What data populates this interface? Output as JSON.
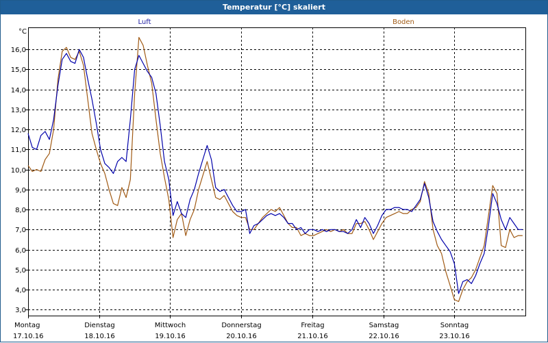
{
  "window": {
    "title": "Temperatur [°C] skaliert"
  },
  "chart_data": {
    "type": "line",
    "title": "Temperatur [°C] skaliert",
    "unit_label": "°C",
    "xlabel": "",
    "ylabel": "°C",
    "xlim": [
      0,
      7
    ],
    "ylim": [
      2.7,
      17.1
    ],
    "grid": true,
    "y_ticks": [
      3.0,
      4.0,
      5.0,
      6.0,
      7.0,
      8.0,
      9.0,
      10.0,
      11.0,
      12.0,
      13.0,
      14.0,
      15.0,
      16.0
    ],
    "y_tick_labels": [
      "3,0",
      "4,0",
      "5,0",
      "6,0",
      "7,0",
      "8,0",
      "9,0",
      "10,0",
      "11,0",
      "12,0",
      "13,0",
      "14,0",
      "15,0",
      "16,0"
    ],
    "x_ticks": [
      0,
      1,
      2,
      3,
      4,
      5,
      6
    ],
    "x_tick_days": [
      "Montag",
      "Dienstag",
      "Mittwoch",
      "Donnerstag",
      "Freitag",
      "Samstag",
      "Sonntag"
    ],
    "x_tick_dates": [
      "17.10.16",
      "18.10.16",
      "19.10.16",
      "20.10.16",
      "21.10.16",
      "22.10.16",
      "23.10.16"
    ],
    "series": [
      {
        "name": "Luft",
        "color": "#0000aa",
        "points": [
          [
            0.0,
            11.8
          ],
          [
            0.06,
            11.1
          ],
          [
            0.12,
            11.0
          ],
          [
            0.18,
            11.7
          ],
          [
            0.24,
            11.9
          ],
          [
            0.3,
            11.5
          ],
          [
            0.36,
            12.5
          ],
          [
            0.42,
            14.2
          ],
          [
            0.48,
            15.5
          ],
          [
            0.54,
            15.8
          ],
          [
            0.6,
            15.4
          ],
          [
            0.66,
            15.3
          ],
          [
            0.72,
            16.0
          ],
          [
            0.78,
            15.6
          ],
          [
            0.84,
            14.5
          ],
          [
            0.9,
            13.5
          ],
          [
            0.96,
            12.3
          ],
          [
            1.02,
            11.0
          ],
          [
            1.08,
            10.3
          ],
          [
            1.14,
            10.1
          ],
          [
            1.2,
            9.8
          ],
          [
            1.26,
            10.4
          ],
          [
            1.32,
            10.6
          ],
          [
            1.38,
            10.4
          ],
          [
            1.44,
            12.5
          ],
          [
            1.5,
            15.0
          ],
          [
            1.56,
            15.7
          ],
          [
            1.62,
            15.3
          ],
          [
            1.68,
            14.9
          ],
          [
            1.74,
            14.6
          ],
          [
            1.8,
            13.8
          ],
          [
            1.86,
            12.2
          ],
          [
            1.92,
            10.4
          ],
          [
            1.98,
            9.5
          ],
          [
            2.04,
            7.7
          ],
          [
            2.1,
            8.4
          ],
          [
            2.16,
            7.8
          ],
          [
            2.22,
            7.6
          ],
          [
            2.28,
            8.5
          ],
          [
            2.34,
            9.0
          ],
          [
            2.4,
            9.8
          ],
          [
            2.46,
            10.5
          ],
          [
            2.52,
            11.2
          ],
          [
            2.58,
            10.5
          ],
          [
            2.64,
            9.1
          ],
          [
            2.7,
            8.9
          ],
          [
            2.76,
            9.0
          ],
          [
            2.82,
            8.6
          ],
          [
            2.88,
            8.2
          ],
          [
            2.94,
            7.9
          ],
          [
            3.0,
            7.9
          ],
          [
            3.06,
            8.0
          ],
          [
            3.12,
            6.8
          ],
          [
            3.18,
            7.2
          ],
          [
            3.24,
            7.3
          ],
          [
            3.3,
            7.5
          ],
          [
            3.36,
            7.7
          ],
          [
            3.42,
            7.8
          ],
          [
            3.48,
            7.7
          ],
          [
            3.54,
            7.8
          ],
          [
            3.6,
            7.6
          ],
          [
            3.66,
            7.3
          ],
          [
            3.72,
            7.3
          ],
          [
            3.78,
            7.0
          ],
          [
            3.84,
            7.1
          ],
          [
            3.9,
            6.8
          ],
          [
            3.96,
            7.0
          ],
          [
            4.02,
            7.0
          ],
          [
            4.08,
            6.9
          ],
          [
            4.14,
            7.0
          ],
          [
            4.2,
            6.9
          ],
          [
            4.26,
            7.0
          ],
          [
            4.32,
            7.0
          ],
          [
            4.38,
            6.9
          ],
          [
            4.44,
            6.9
          ],
          [
            4.5,
            6.8
          ],
          [
            4.56,
            7.0
          ],
          [
            4.62,
            7.5
          ],
          [
            4.68,
            7.1
          ],
          [
            4.74,
            7.6
          ],
          [
            4.8,
            7.3
          ],
          [
            4.86,
            6.8
          ],
          [
            4.92,
            7.2
          ],
          [
            4.98,
            7.7
          ],
          [
            5.04,
            8.0
          ],
          [
            5.1,
            8.0
          ],
          [
            5.16,
            8.1
          ],
          [
            5.22,
            8.1
          ],
          [
            5.28,
            8.0
          ],
          [
            5.34,
            8.0
          ],
          [
            5.4,
            7.9
          ],
          [
            5.46,
            8.2
          ],
          [
            5.52,
            8.5
          ],
          [
            5.58,
            9.3
          ],
          [
            5.64,
            8.6
          ],
          [
            5.7,
            7.4
          ],
          [
            5.76,
            6.9
          ],
          [
            5.82,
            6.5
          ],
          [
            5.88,
            6.2
          ],
          [
            5.94,
            5.9
          ],
          [
            6.0,
            5.3
          ],
          [
            6.06,
            3.8
          ],
          [
            6.12,
            4.4
          ],
          [
            6.18,
            4.5
          ],
          [
            6.24,
            4.3
          ],
          [
            6.3,
            4.7
          ],
          [
            6.36,
            5.3
          ],
          [
            6.42,
            5.8
          ],
          [
            6.48,
            7.2
          ],
          [
            6.54,
            8.8
          ],
          [
            6.6,
            8.3
          ],
          [
            6.66,
            7.5
          ],
          [
            6.72,
            7.0
          ],
          [
            6.78,
            7.6
          ],
          [
            6.84,
            7.3
          ],
          [
            6.9,
            7.0
          ],
          [
            6.96,
            7.0
          ]
        ]
      },
      {
        "name": "Boden",
        "color": "#a05a14",
        "points": [
          [
            0.0,
            10.2
          ],
          [
            0.06,
            9.9
          ],
          [
            0.12,
            10.0
          ],
          [
            0.18,
            9.9
          ],
          [
            0.24,
            10.5
          ],
          [
            0.3,
            10.8
          ],
          [
            0.36,
            12.0
          ],
          [
            0.42,
            14.5
          ],
          [
            0.48,
            15.9
          ],
          [
            0.54,
            16.1
          ],
          [
            0.6,
            15.6
          ],
          [
            0.66,
            15.5
          ],
          [
            0.72,
            15.9
          ],
          [
            0.78,
            15.2
          ],
          [
            0.84,
            13.5
          ],
          [
            0.9,
            11.8
          ],
          [
            0.96,
            11.0
          ],
          [
            1.02,
            10.3
          ],
          [
            1.08,
            9.8
          ],
          [
            1.14,
            9.0
          ],
          [
            1.2,
            8.3
          ],
          [
            1.26,
            8.2
          ],
          [
            1.32,
            9.1
          ],
          [
            1.38,
            8.6
          ],
          [
            1.44,
            9.5
          ],
          [
            1.5,
            13.8
          ],
          [
            1.56,
            16.6
          ],
          [
            1.62,
            16.2
          ],
          [
            1.68,
            15.2
          ],
          [
            1.74,
            14.3
          ],
          [
            1.8,
            12.5
          ],
          [
            1.86,
            10.8
          ],
          [
            1.92,
            9.6
          ],
          [
            1.98,
            8.5
          ],
          [
            2.04,
            6.6
          ],
          [
            2.1,
            7.5
          ],
          [
            2.16,
            7.8
          ],
          [
            2.22,
            6.7
          ],
          [
            2.28,
            7.5
          ],
          [
            2.34,
            8.0
          ],
          [
            2.4,
            9.0
          ],
          [
            2.46,
            9.7
          ],
          [
            2.52,
            10.4
          ],
          [
            2.58,
            9.5
          ],
          [
            2.64,
            8.6
          ],
          [
            2.7,
            8.5
          ],
          [
            2.76,
            8.7
          ],
          [
            2.82,
            8.3
          ],
          [
            2.88,
            7.9
          ],
          [
            2.94,
            7.7
          ],
          [
            3.0,
            7.6
          ],
          [
            3.06,
            7.6
          ],
          [
            3.12,
            7.0
          ],
          [
            3.18,
            7.0
          ],
          [
            3.24,
            7.3
          ],
          [
            3.3,
            7.6
          ],
          [
            3.36,
            7.8
          ],
          [
            3.42,
            8.0
          ],
          [
            3.48,
            7.9
          ],
          [
            3.54,
            8.1
          ],
          [
            3.6,
            7.7
          ],
          [
            3.66,
            7.3
          ],
          [
            3.72,
            7.1
          ],
          [
            3.78,
            7.1
          ],
          [
            3.84,
            6.7
          ],
          [
            3.9,
            6.8
          ],
          [
            3.96,
            6.7
          ],
          [
            4.02,
            6.7
          ],
          [
            4.08,
            6.8
          ],
          [
            4.14,
            6.9
          ],
          [
            4.2,
            7.0
          ],
          [
            4.26,
            6.9
          ],
          [
            4.32,
            7.0
          ],
          [
            4.38,
            6.9
          ],
          [
            4.44,
            7.0
          ],
          [
            4.5,
            6.8
          ],
          [
            4.56,
            6.8
          ],
          [
            4.62,
            7.3
          ],
          [
            4.68,
            7.3
          ],
          [
            4.74,
            7.4
          ],
          [
            4.8,
            7.0
          ],
          [
            4.86,
            6.5
          ],
          [
            4.92,
            6.9
          ],
          [
            4.98,
            7.3
          ],
          [
            5.04,
            7.6
          ],
          [
            5.1,
            7.7
          ],
          [
            5.16,
            7.8
          ],
          [
            5.22,
            7.9
          ],
          [
            5.28,
            7.8
          ],
          [
            5.34,
            7.8
          ],
          [
            5.4,
            8.0
          ],
          [
            5.46,
            8.1
          ],
          [
            5.52,
            8.4
          ],
          [
            5.58,
            9.4
          ],
          [
            5.64,
            8.8
          ],
          [
            5.7,
            7.0
          ],
          [
            5.76,
            6.2
          ],
          [
            5.82,
            5.8
          ],
          [
            5.88,
            4.9
          ],
          [
            5.94,
            4.2
          ],
          [
            6.0,
            3.5
          ],
          [
            6.06,
            3.4
          ],
          [
            6.12,
            4.0
          ],
          [
            6.18,
            4.4
          ],
          [
            6.24,
            4.6
          ],
          [
            6.3,
            5.0
          ],
          [
            6.36,
            5.6
          ],
          [
            6.42,
            6.2
          ],
          [
            6.48,
            7.7
          ],
          [
            6.54,
            9.2
          ],
          [
            6.6,
            8.8
          ],
          [
            6.66,
            6.2
          ],
          [
            6.72,
            6.1
          ],
          [
            6.78,
            7.0
          ],
          [
            6.84,
            6.6
          ],
          [
            6.9,
            6.7
          ],
          [
            6.96,
            6.7
          ]
        ]
      }
    ]
  }
}
